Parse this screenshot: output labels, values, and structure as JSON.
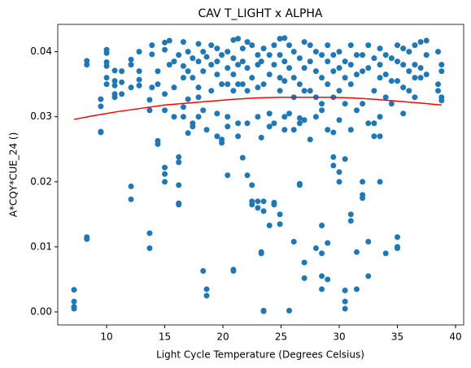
{
  "chart_data": {
    "type": "scatter",
    "title": "CAV T_LIGHT x ALPHA",
    "xlabel": "Light Cycle Temperature (Degrees Celsius)",
    "ylabel": "A*CQY*CUE_24 ()",
    "xlim": [
      5.8,
      40.7
    ],
    "ylim": [
      -0.002,
      0.0442
    ],
    "xticks": [
      10,
      15,
      20,
      25,
      30,
      35,
      40
    ],
    "yticks": [
      {
        "value": 0,
        "label": "0.00"
      },
      0.01,
      0.02,
      0.03,
      0.04
    ],
    "series": [
      {
        "type": "scatter",
        "color": "#1f77b4",
        "x": [
          7.2,
          7.2,
          7.2,
          7.2,
          8.3,
          8.3,
          8.3,
          8.3,
          9.5,
          9.5,
          9.5,
          9.5,
          10,
          10,
          10,
          10,
          10,
          10,
          10.7,
          10.7,
          10.7,
          10.7,
          10.7,
          11.3,
          11.3,
          11.3,
          12.1,
          12.1,
          12.1,
          12.1,
          12.1,
          12.8,
          12.8,
          12.8,
          12.8,
          13.7,
          13.7,
          13.7,
          13.7,
          13.9,
          13.9,
          13.9,
          14.4,
          14.4,
          14.4,
          14.4,
          15,
          15,
          15,
          15,
          15,
          15,
          15,
          15.4,
          15.4,
          15.8,
          15.8,
          15.8,
          16.2,
          16.2,
          16.2,
          16.2,
          16.2,
          16.2,
          16.6,
          16.6,
          16.6,
          16.6,
          16.6,
          17,
          17,
          17,
          17,
          17.4,
          17.4,
          17.4,
          17.4,
          17.9,
          17.9,
          17.9,
          17.9,
          17.9,
          18.3,
          18.3,
          18.3,
          18.3,
          18.6,
          18.6,
          18.6,
          18.6,
          19,
          19,
          19,
          19.5,
          19.5,
          19.5,
          19.5,
          19.5,
          19.9,
          19.9,
          19.9,
          19.9,
          20.4,
          20.4,
          20.4,
          20.4,
          20.4,
          20.4,
          20.9,
          20.9,
          20.9,
          20.9,
          20.9,
          20.9,
          21.3,
          21.3,
          21.3,
          21.3,
          21.3,
          21.7,
          21.7,
          21.7,
          21.7,
          22.1,
          22.1,
          22.1,
          22.1,
          22.1,
          22.5,
          22.5,
          22.5,
          22.5,
          22.5,
          23,
          23,
          23,
          23,
          23,
          23,
          23.3,
          23.3,
          23.3,
          23.3,
          23.5,
          23.5,
          23.5,
          23.5,
          23.5,
          23.5,
          24,
          24,
          24,
          24,
          24,
          24.4,
          24.4,
          24.4,
          24.4,
          24.4,
          24.9,
          24.9,
          24.9,
          24.9,
          24.9,
          24.9,
          25.3,
          25.3,
          25.3,
          25.3,
          25.3,
          25.7,
          25.7,
          25.7,
          25.7,
          26.1,
          26.1,
          26.1,
          26.1,
          26.1,
          26.6,
          26.6,
          26.6,
          26.6,
          26.6,
          26.6,
          27,
          27,
          27,
          27,
          27,
          27,
          27.5,
          27.5,
          27.5,
          27.5,
          28,
          28,
          28,
          28,
          28,
          28.5,
          28.5,
          28.5,
          28.5,
          28.5,
          28.5,
          28.5,
          28.5,
          29,
          29,
          29,
          29,
          29,
          29,
          29.5,
          29.5,
          29.5,
          29.5,
          29.5,
          29.5,
          30,
          30,
          30,
          30,
          30,
          30,
          30.5,
          30.5,
          30.5,
          30.5,
          30.5,
          30.5,
          30.5,
          31,
          31,
          31,
          31,
          31,
          31,
          31.5,
          31.5,
          31.5,
          31.5,
          31.5,
          32,
          32,
          32,
          32,
          32,
          32,
          32.5,
          32.5,
          32.5,
          32.5,
          32.5,
          33,
          33,
          33,
          33,
          33.5,
          33.5,
          33.5,
          33.5,
          33.5,
          33.5,
          34,
          34,
          34,
          34,
          34.5,
          34.5,
          34.5,
          35,
          35,
          35,
          35,
          35,
          35,
          35.5,
          35.5,
          35.5,
          35.5,
          36,
          36,
          36,
          36.5,
          36.5,
          36.5,
          36.5,
          37,
          37,
          37,
          37.5,
          37.5,
          37.5,
          38.5,
          38.5,
          38.5,
          38.8,
          38.8,
          38.8,
          38.8
        ],
        "values": [
          0.0034,
          0.0016,
          0.0008,
          0.0005,
          0.0386,
          0.038,
          0.0115,
          0.0112,
          0.0327,
          0.0316,
          0.0277,
          0.0276,
          0.0403,
          0.0398,
          0.0384,
          0.0378,
          0.036,
          0.035,
          0.0371,
          0.0355,
          0.0348,
          0.0335,
          0.033,
          0.037,
          0.0353,
          0.0335,
          0.0388,
          0.038,
          0.0345,
          0.0193,
          0.0173,
          0.04,
          0.037,
          0.0357,
          0.0348,
          0.0326,
          0.031,
          0.0121,
          0.0098,
          0.041,
          0.0396,
          0.0345,
          0.037,
          0.035,
          0.0263,
          0.0258,
          0.0414,
          0.0403,
          0.0335,
          0.031,
          0.0222,
          0.0212,
          0.02,
          0.0417,
          0.038,
          0.0385,
          0.0345,
          0.03,
          0.0395,
          0.0238,
          0.023,
          0.0195,
          0.0167,
          0.0165,
          0.0415,
          0.0378,
          0.036,
          0.0315,
          0.03,
          0.04,
          0.037,
          0.0327,
          0.0275,
          0.039,
          0.036,
          0.029,
          0.0285,
          0.0412,
          0.0385,
          0.0345,
          0.033,
          0.03,
          0.04,
          0.037,
          0.031,
          0.0063,
          0.0392,
          0.028,
          0.0035,
          0.0025,
          0.041,
          0.038,
          0.034,
          0.0405,
          0.0385,
          0.0365,
          0.0305,
          0.027,
          0.0395,
          0.035,
          0.0265,
          0.026,
          0.04,
          0.0375,
          0.035,
          0.03,
          0.0285,
          0.021,
          0.0418,
          0.039,
          0.0365,
          0.034,
          0.0065,
          0.0063,
          0.042,
          0.038,
          0.035,
          0.029,
          0.027,
          0.0405,
          0.0385,
          0.035,
          0.0237,
          0.0415,
          0.0375,
          0.034,
          0.029,
          0.021,
          0.041,
          0.036,
          0.0195,
          0.017,
          0.0165,
          0.0395,
          0.038,
          0.0345,
          0.03,
          0.017,
          0.016,
          0.0385,
          0.0268,
          0.0092,
          0.009,
          0.0405,
          0.035,
          0.017,
          0.0155,
          0.0002,
          0.0001,
          0.0395,
          0.0365,
          0.0305,
          0.0285,
          0.0133,
          0.041,
          0.038,
          0.029,
          0.0168,
          0.0165,
          0.042,
          0.0395,
          0.036,
          0.034,
          0.015,
          0.0135,
          0.0421,
          0.0385,
          0.0355,
          0.03,
          0.028,
          0.041,
          0.0375,
          0.0305,
          0.0002,
          0.04,
          0.036,
          0.033,
          0.028,
          0.0108,
          0.039,
          0.035,
          0.0298,
          0.029,
          0.0197,
          0.0195,
          0.0415,
          0.0375,
          0.034,
          0.0295,
          0.0076,
          0.0052,
          0.041,
          0.0385,
          0.034,
          0.0265,
          0.04,
          0.037,
          0.033,
          0.03,
          0.0098,
          0.0395,
          0.036,
          0.032,
          0.031,
          0.0133,
          0.009,
          0.0055,
          0.0035,
          0.041,
          0.0385,
          0.035,
          0.028,
          0.0106,
          0.005,
          0.0395,
          0.037,
          0.033,
          0.0276,
          0.0238,
          0.0225,
          0.04,
          0.0375,
          0.034,
          0.0295,
          0.0215,
          0.02,
          0.0385,
          0.036,
          0.032,
          0.0235,
          0.0033,
          0.0016,
          0.0005,
          0.041,
          0.038,
          0.035,
          0.028,
          0.015,
          0.014,
          0.0395,
          0.0365,
          0.031,
          0.0092,
          0.0035,
          0.0395,
          0.037,
          0.032,
          0.02,
          0.018,
          0.0175,
          0.041,
          0.0375,
          0.029,
          0.0108,
          0.0055,
          0.039,
          0.034,
          0.029,
          0.027,
          0.0405,
          0.038,
          0.036,
          0.03,
          0.027,
          0.02,
          0.0395,
          0.0365,
          0.033,
          0.009,
          0.039,
          0.0355,
          0.032,
          0.041,
          0.0385,
          0.0355,
          0.0115,
          0.01,
          0.0098,
          0.0405,
          0.038,
          0.0345,
          0.0305,
          0.04,
          0.037,
          0.034,
          0.041,
          0.038,
          0.036,
          0.033,
          0.0415,
          0.0375,
          0.036,
          0.0417,
          0.0395,
          0.0365,
          0.04,
          0.035,
          0.034,
          0.038,
          0.037,
          0.033,
          0.0325
        ]
      },
      {
        "type": "line",
        "color": "red",
        "x": [
          7.2,
          9,
          11,
          13,
          15,
          17,
          19,
          21,
          23,
          25,
          27,
          29,
          31,
          33,
          35,
          37,
          38.8
        ],
        "values": [
          0.0296,
          0.0302,
          0.0308,
          0.0313,
          0.0318,
          0.0321,
          0.0324,
          0.0327,
          0.0329,
          0.033,
          0.033,
          0.033,
          0.0329,
          0.0327,
          0.0324,
          0.0321,
          0.0318
        ]
      }
    ]
  }
}
